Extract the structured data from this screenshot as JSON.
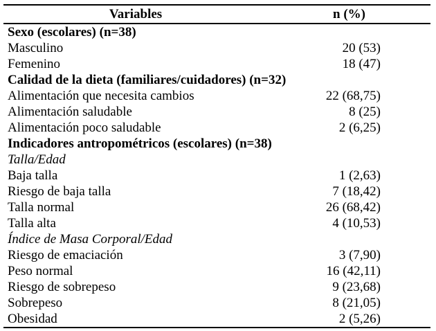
{
  "colors": {
    "background": "#ffffff",
    "text": "#000000",
    "border": "#000000"
  },
  "table": {
    "columns": {
      "variables": "Variables",
      "n_pct": "n (%)"
    },
    "rows": [
      {
        "type": "section",
        "label": "Sexo (escolares) (n=38)",
        "value": ""
      },
      {
        "type": "item",
        "label": "Masculino",
        "value": "20 (53)"
      },
      {
        "type": "item",
        "label": "Femenino",
        "value": "18 (47)"
      },
      {
        "type": "section",
        "label": "Calidad de la dieta (familiares/cuidadores) (n=32)",
        "value": ""
      },
      {
        "type": "item",
        "label": "Alimentación que necesita cambios",
        "value": "22 (68,75)"
      },
      {
        "type": "item",
        "label": "Alimentación saludable",
        "value": "8 (25)"
      },
      {
        "type": "item",
        "label": "Alimentación poco saludable",
        "value": "2 (6,25)"
      },
      {
        "type": "section",
        "label": "Indicadores antropométricos (escolares) (n=38)",
        "value": ""
      },
      {
        "type": "subsection",
        "label": "Talla/Edad",
        "value": ""
      },
      {
        "type": "item",
        "label": "Baja talla",
        "value": "1 (2,63)"
      },
      {
        "type": "item",
        "label": "Riesgo de baja talla",
        "value": "7 (18,42)"
      },
      {
        "type": "item",
        "label": "Talla normal",
        "value": "26 (68,42)"
      },
      {
        "type": "item",
        "label": "Talla alta",
        "value": "4 (10,53)"
      },
      {
        "type": "subsection",
        "label": "Índice de Masa Corporal/Edad",
        "value": ""
      },
      {
        "type": "item",
        "label": "Riesgo de emaciación",
        "value": "3 (7,90)"
      },
      {
        "type": "item",
        "label": "Peso normal",
        "value": "16 (42,11)"
      },
      {
        "type": "item",
        "label": "Riesgo de sobrepeso",
        "value": "9 (23,68)"
      },
      {
        "type": "item",
        "label": "Sobrepeso",
        "value": "8 (21,05)"
      },
      {
        "type": "item",
        "label": "Obesidad",
        "value": "2 (5,26)"
      }
    ]
  }
}
